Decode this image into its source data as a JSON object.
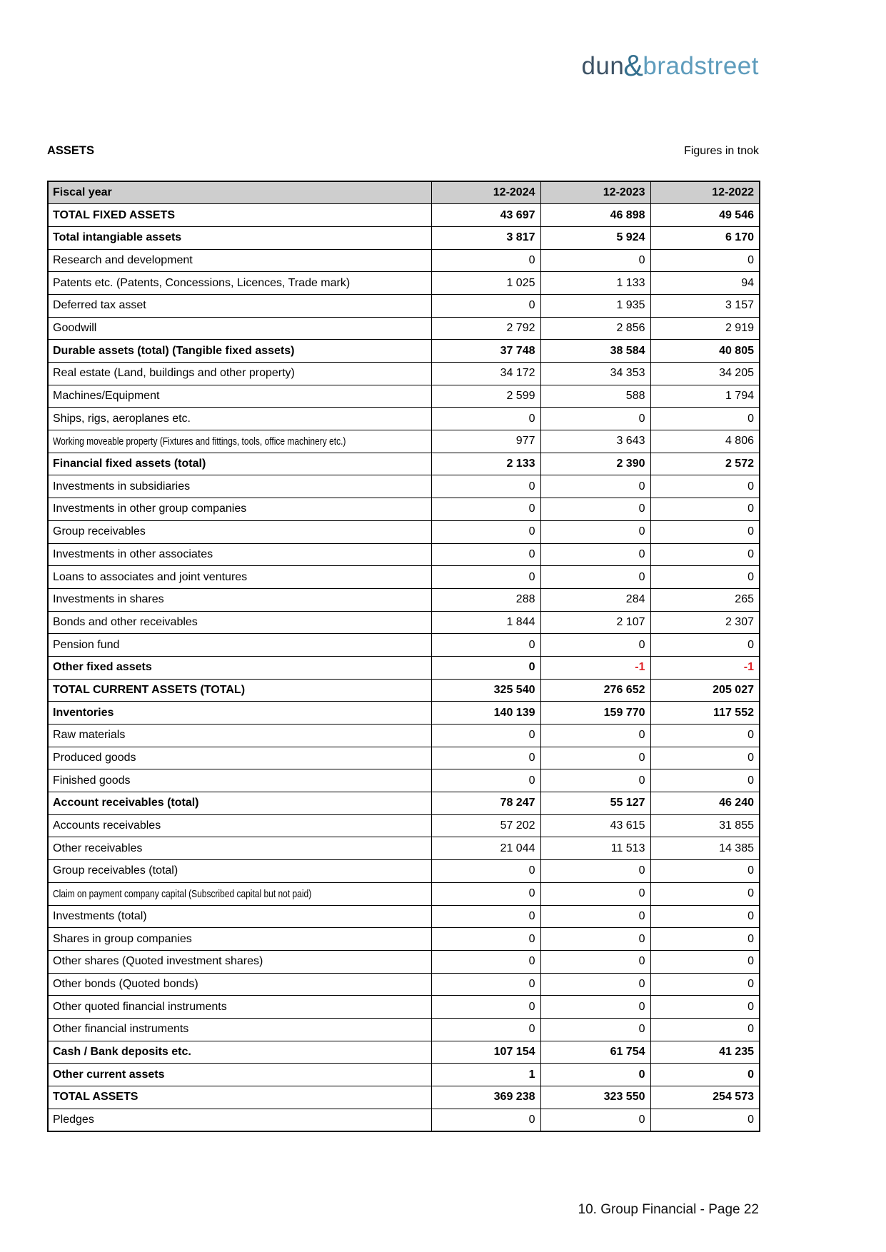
{
  "logo": {
    "part1": "dun",
    "ampersand": "&",
    "part2": "bradstreet"
  },
  "header": {
    "title": "ASSETS",
    "unit_note": "Figures in tnok"
  },
  "table": {
    "columns": [
      "Fiscal year",
      "12-2024",
      "12-2023",
      "12-2022"
    ],
    "rows": [
      {
        "label": "TOTAL FIXED ASSETS",
        "values": [
          "43 697",
          "46 898",
          "49 546"
        ],
        "style": "bold"
      },
      {
        "label": "Total intangiable assets",
        "values": [
          "3 817",
          "5 924",
          "6 170"
        ],
        "style": "bold"
      },
      {
        "label": "Research and development",
        "values": [
          "0",
          "0",
          "0"
        ],
        "style": "normal"
      },
      {
        "label": "Patents etc. (Patents, Concessions, Licences, Trade mark)",
        "values": [
          "1 025",
          "1 133",
          "94"
        ],
        "style": "normal"
      },
      {
        "label": "Deferred tax asset",
        "values": [
          "0",
          "1 935",
          "3 157"
        ],
        "style": "normal"
      },
      {
        "label": "Goodwill",
        "values": [
          "2 792",
          "2 856",
          "2 919"
        ],
        "style": "normal"
      },
      {
        "label": "Durable assets (total) (Tangible fixed assets)",
        "values": [
          "37 748",
          "38 584",
          "40 805"
        ],
        "style": "bold"
      },
      {
        "label": "Real estate (Land, buildings and other property)",
        "values": [
          "34 172",
          "34 353",
          "34 205"
        ],
        "style": "normal"
      },
      {
        "label": "Machines/Equipment",
        "values": [
          "2 599",
          "588",
          "1 794"
        ],
        "style": "normal"
      },
      {
        "label": "Ships, rigs, aeroplanes etc.",
        "values": [
          "0",
          "0",
          "0"
        ],
        "style": "normal"
      },
      {
        "label": "Working moveable property (Fixtures and fittings, tools, office machinery etc.)",
        "values": [
          "977",
          "3 643",
          "4 806"
        ],
        "style": "condensed"
      },
      {
        "label": "Financial fixed assets (total)",
        "values": [
          "2 133",
          "2 390",
          "2 572"
        ],
        "style": "bold"
      },
      {
        "label": "Investments in subsidiaries",
        "values": [
          "0",
          "0",
          "0"
        ],
        "style": "normal"
      },
      {
        "label": "Investments in other group companies",
        "values": [
          "0",
          "0",
          "0"
        ],
        "style": "normal"
      },
      {
        "label": "Group receivables",
        "values": [
          "0",
          "0",
          "0"
        ],
        "style": "normal"
      },
      {
        "label": "Investments in other associates",
        "values": [
          "0",
          "0",
          "0"
        ],
        "style": "normal"
      },
      {
        "label": "Loans to associates and joint ventures",
        "values": [
          "0",
          "0",
          "0"
        ],
        "style": "normal"
      },
      {
        "label": "Investments in shares",
        "values": [
          "288",
          "284",
          "265"
        ],
        "style": "normal"
      },
      {
        "label": "Bonds and other receivables",
        "values": [
          "1 844",
          "2 107",
          "2 307"
        ],
        "style": "normal"
      },
      {
        "label": "Pension fund",
        "values": [
          "0",
          "0",
          "0"
        ],
        "style": "normal"
      },
      {
        "label": "Other fixed assets",
        "values": [
          "0",
          "-1",
          "-1"
        ],
        "style": "bold"
      },
      {
        "label": "TOTAL CURRENT ASSETS (TOTAL)",
        "values": [
          "325 540",
          "276 652",
          "205 027"
        ],
        "style": "bold"
      },
      {
        "label": "Inventories",
        "values": [
          "140 139",
          "159 770",
          "117 552"
        ],
        "style": "bold"
      },
      {
        "label": "Raw materials",
        "values": [
          "0",
          "0",
          "0"
        ],
        "style": "normal"
      },
      {
        "label": "Produced goods",
        "values": [
          "0",
          "0",
          "0"
        ],
        "style": "normal"
      },
      {
        "label": "Finished goods",
        "values": [
          "0",
          "0",
          "0"
        ],
        "style": "normal"
      },
      {
        "label": "Account receivables (total)",
        "values": [
          "78 247",
          "55 127",
          "46 240"
        ],
        "style": "bold"
      },
      {
        "label": "Accounts receivables",
        "values": [
          "57 202",
          "43 615",
          "31 855"
        ],
        "style": "normal"
      },
      {
        "label": "Other receivables",
        "values": [
          "21 044",
          "11 513",
          "14 385"
        ],
        "style": "normal"
      },
      {
        "label": "Group receivables (total)",
        "values": [
          "0",
          "0",
          "0"
        ],
        "style": "normal"
      },
      {
        "label": "Claim on payment company capital (Subscribed capital but not paid)",
        "values": [
          "0",
          "0",
          "0"
        ],
        "style": "condensed"
      },
      {
        "label": "Investments (total)",
        "values": [
          "0",
          "0",
          "0"
        ],
        "style": "normal"
      },
      {
        "label": "Shares in group companies",
        "values": [
          "0",
          "0",
          "0"
        ],
        "style": "normal"
      },
      {
        "label": "Other shares (Quoted investment shares)",
        "values": [
          "0",
          "0",
          "0"
        ],
        "style": "normal"
      },
      {
        "label": "Other bonds (Quoted bonds)",
        "values": [
          "0",
          "0",
          "0"
        ],
        "style": "normal"
      },
      {
        "label": "Other quoted financial instruments",
        "values": [
          "0",
          "0",
          "0"
        ],
        "style": "normal"
      },
      {
        "label": "Other financial instruments",
        "values": [
          "0",
          "0",
          "0"
        ],
        "style": "normal"
      },
      {
        "label": "Cash / Bank deposits etc.",
        "values": [
          "107 154",
          "61 754",
          "41 235"
        ],
        "style": "bold"
      },
      {
        "label": "Other current assets",
        "values": [
          "1",
          "0",
          "0"
        ],
        "style": "bold"
      },
      {
        "label": "TOTAL ASSETS",
        "values": [
          "369 238",
          "323 550",
          "254 573"
        ],
        "style": "bold"
      },
      {
        "label": "Pledges",
        "values": [
          "0",
          "0",
          "0"
        ],
        "style": "normal"
      }
    ]
  },
  "footer": {
    "text": "10. Group Financial - Page 22"
  },
  "colors": {
    "negative": "#e02428",
    "header_bg": "#cecece",
    "logo_dun": "#3d5265",
    "logo_amp": "#35708f",
    "logo_bradstreet": "#5e9cbc",
    "border": "#000000"
  }
}
